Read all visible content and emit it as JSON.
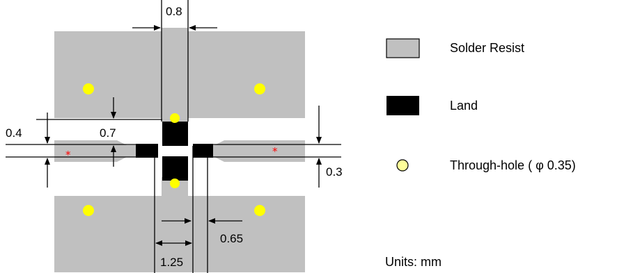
{
  "colors": {
    "solder_resist": "#c0c0c0",
    "land": "#000000",
    "through_hole": "#ffff00",
    "legend_hole_fill": "#ffff99",
    "star": "#ff0000",
    "line": "#000000"
  },
  "dimensions": {
    "top_width": "0.8",
    "left_gap": "0.4",
    "land_height": "0.7",
    "right_gap": "0.3",
    "right_land_offset": "0.65",
    "center_width": "1.25"
  },
  "markers": {
    "left_star": "*",
    "right_star": "*"
  },
  "legend": {
    "solder_resist": "Solder Resist",
    "land": "Land",
    "through_hole": "Through-hole ( φ 0.35)",
    "units": "Units: mm"
  },
  "icons": {
    "solder_resist_swatch": "grey-square-icon",
    "land_swatch": "black-square-icon",
    "through_hole_swatch": "yellow-circle-icon"
  }
}
